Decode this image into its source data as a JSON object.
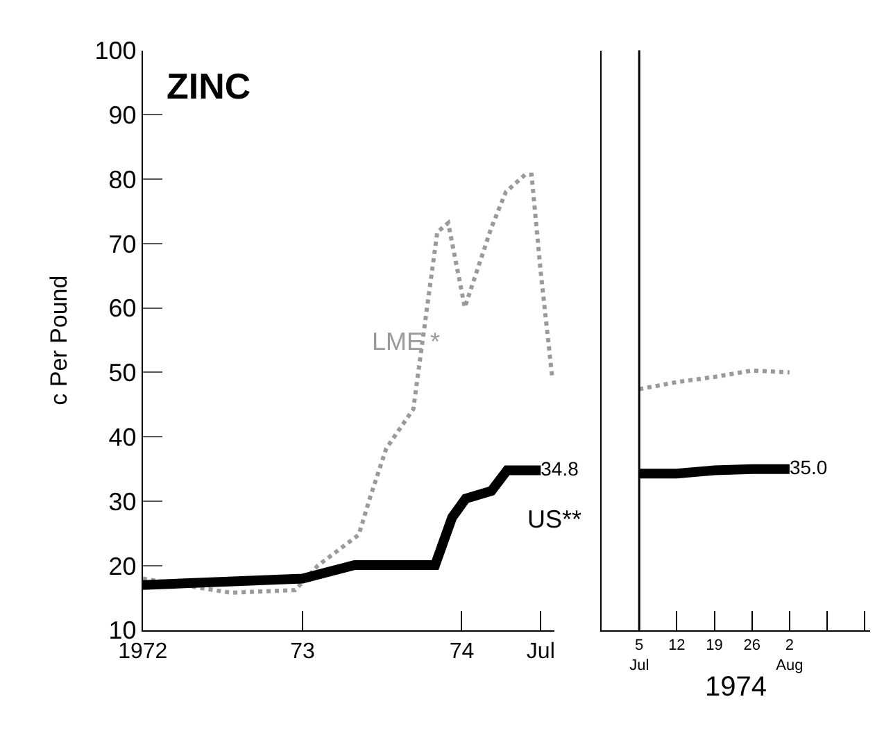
{
  "chart_data": [
    {
      "type": "line",
      "title": "ZINC",
      "ylabel": "c Per Pound",
      "xlim": [
        "1972-01-01",
        "1974-08-01"
      ],
      "ylim": [
        10,
        100
      ],
      "xticks": [
        {
          "value": "1972-01-01",
          "label": "1972"
        },
        {
          "value": "1973-01-01",
          "label": "73"
        },
        {
          "value": "1974-01-01",
          "label": "74"
        },
        {
          "value": "1974-07-01",
          "label": "Jul"
        }
      ],
      "yticks": [
        10,
        20,
        30,
        40,
        50,
        60,
        70,
        80,
        90,
        100
      ],
      "series": [
        {
          "name": "LME *",
          "color": "#9a9a9a",
          "line_style": "dotted",
          "x": [
            "1972-01-01",
            "1972-07-20",
            "1972-12-15",
            "1973-02-05",
            "1973-05-10",
            "1973-06-05",
            "1973-07-12",
            "1973-09-12",
            "1973-11-06",
            "1973-12-01",
            "1974-01-08",
            "1974-03-10",
            "1974-04-12",
            "1974-05-26",
            "1974-06-10",
            "1974-07-01",
            "1974-07-27"
          ],
          "values": [
            18,
            15.8,
            16.2,
            20,
            24.8,
            30.6,
            38.2,
            44.3,
            71.8,
            73.2,
            60.1,
            72.5,
            78,
            80.7,
            80.7,
            65.6,
            49.5
          ]
        },
        {
          "name": "US**",
          "color": "#000000",
          "line_style": "solid",
          "x": [
            "1972-01-01",
            "1973-01-01",
            "1973-05-01",
            "1973-11-01",
            "1973-12-10",
            "1974-01-10",
            "1974-03-10",
            "1974-04-15",
            "1974-07-01"
          ],
          "values": [
            17,
            18,
            20.1,
            20.1,
            27.5,
            30.4,
            31.6,
            34.8,
            34.8
          ],
          "value_labels": [
            null,
            null,
            null,
            null,
            null,
            null,
            null,
            null,
            "34.8"
          ]
        }
      ]
    },
    {
      "type": "line",
      "xlabel": "1974",
      "xlim": [
        "1974-06-28",
        "1974-08-17"
      ],
      "ylim": [
        10,
        100
      ],
      "xticks": [
        {
          "value": "1974-07-05",
          "label": "5\nJul"
        },
        {
          "value": "1974-07-12",
          "label": "12"
        },
        {
          "value": "1974-07-19",
          "label": "19"
        },
        {
          "value": "1974-07-26",
          "label": "26"
        },
        {
          "value": "1974-08-02",
          "label": "2\nAug"
        },
        {
          "value": "1974-08-09",
          "label": null
        },
        {
          "value": "1974-08-16",
          "label": null
        }
      ],
      "tick_labels": "x",
      "ref_lines": [
        {
          "axis": "x",
          "value": "1974-07-05",
          "color": "#000000"
        }
      ],
      "series": [
        {
          "color": "#9a9a9a",
          "line_style": "dotted",
          "x": [
            "1974-07-05",
            "1974-07-12",
            "1974-07-19",
            "1974-07-26",
            "1974-08-02"
          ],
          "values": [
            47.4,
            48.5,
            49.3,
            50.3,
            50.0
          ]
        },
        {
          "color": "#000000",
          "line_style": "solid",
          "x": [
            "1974-07-05",
            "1974-07-12",
            "1974-07-19",
            "1974-07-26",
            "1974-08-02"
          ],
          "values": [
            34.3,
            34.3,
            34.8,
            35.0,
            35.0
          ],
          "value_labels": [
            null,
            null,
            null,
            null,
            "35.0"
          ]
        }
      ]
    }
  ]
}
